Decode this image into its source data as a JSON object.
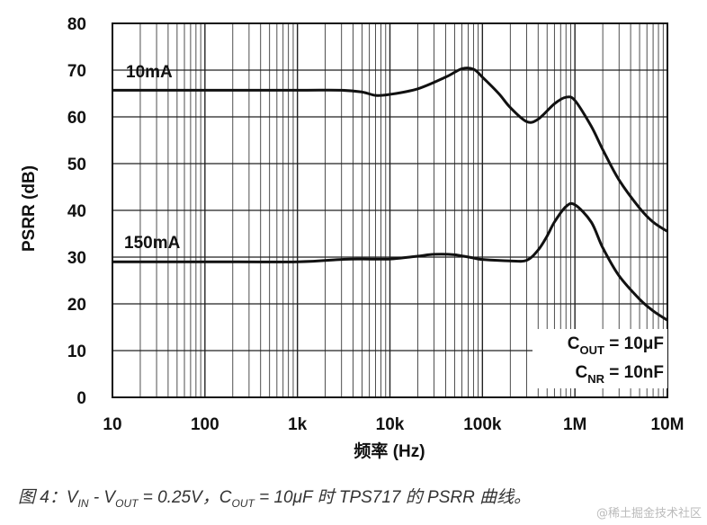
{
  "chart_data": {
    "type": "line",
    "title": "",
    "xlabel": "频率 (Hz)",
    "ylabel": "PSRR (dB)",
    "x_scale": "log",
    "xlim": [
      10,
      10000000
    ],
    "ylim": [
      0,
      80
    ],
    "x_ticks": [
      10,
      100,
      1000,
      10000,
      100000,
      1000000,
      10000000
    ],
    "x_tick_labels": [
      "10",
      "100",
      "1k",
      "10k",
      "100k",
      "1M",
      "10M"
    ],
    "y_ticks": [
      0,
      10,
      20,
      30,
      40,
      50,
      60,
      70,
      80
    ],
    "y_tick_labels": [
      "0",
      "10",
      "20",
      "30",
      "40",
      "50",
      "60",
      "70",
      "80"
    ],
    "grid": true,
    "series": [
      {
        "name": "10mA",
        "x": [
          10,
          100,
          1000,
          3000,
          5000,
          7000,
          10000,
          20000,
          40000,
          60000,
          80000,
          100000,
          150000,
          200000,
          300000,
          400000,
          600000,
          800000,
          1000000,
          1500000,
          2000000,
          3000000,
          5000000,
          7000000,
          10000000
        ],
        "y": [
          65.7,
          65.7,
          65.7,
          65.7,
          65.3,
          64.6,
          64.8,
          66,
          68.5,
          70.3,
          70.2,
          68.5,
          65,
          62,
          59,
          59.5,
          62.8,
          64.2,
          63.5,
          58,
          53,
          46.5,
          40.5,
          37.5,
          35.5
        ]
      },
      {
        "name": "150mA",
        "x": [
          10,
          100,
          1000,
          3000,
          5000,
          10000,
          20000,
          30000,
          50000,
          80000,
          100000,
          200000,
          300000,
          400000,
          500000,
          600000,
          800000,
          1000000,
          1500000,
          2000000,
          3000000,
          5000000,
          7000000,
          10000000
        ],
        "y": [
          29,
          29,
          29,
          29.5,
          29.6,
          29.6,
          30.2,
          30.6,
          30.5,
          29.8,
          29.5,
          29.2,
          29.3,
          31.5,
          34.5,
          37.5,
          40.8,
          41.2,
          37.5,
          32,
          26,
          21,
          18.5,
          16.5
        ]
      }
    ],
    "annotations": [
      "10mA",
      "150mA"
    ],
    "note": {
      "cout_label": "C",
      "cout_sub": "OUT",
      "cout_value": " = 10μF",
      "cnr_label": "C",
      "cnr_sub": "NR",
      "cnr_value": " = 10nF"
    }
  },
  "caption": {
    "prefix": "图 4：",
    "v": "V",
    "in_sub": "IN",
    "mid1": " - V",
    "out_sub": "OUT",
    "mid2": " = 0.25V，C",
    "out_sub2": "OUT",
    "suffix": " = 10μF 时 TPS717 的 PSRR 曲线。"
  },
  "watermark": "@稀土掘金技术社区",
  "colors": {
    "line": "#111111",
    "grid": "#222222",
    "background": "#ffffff"
  }
}
